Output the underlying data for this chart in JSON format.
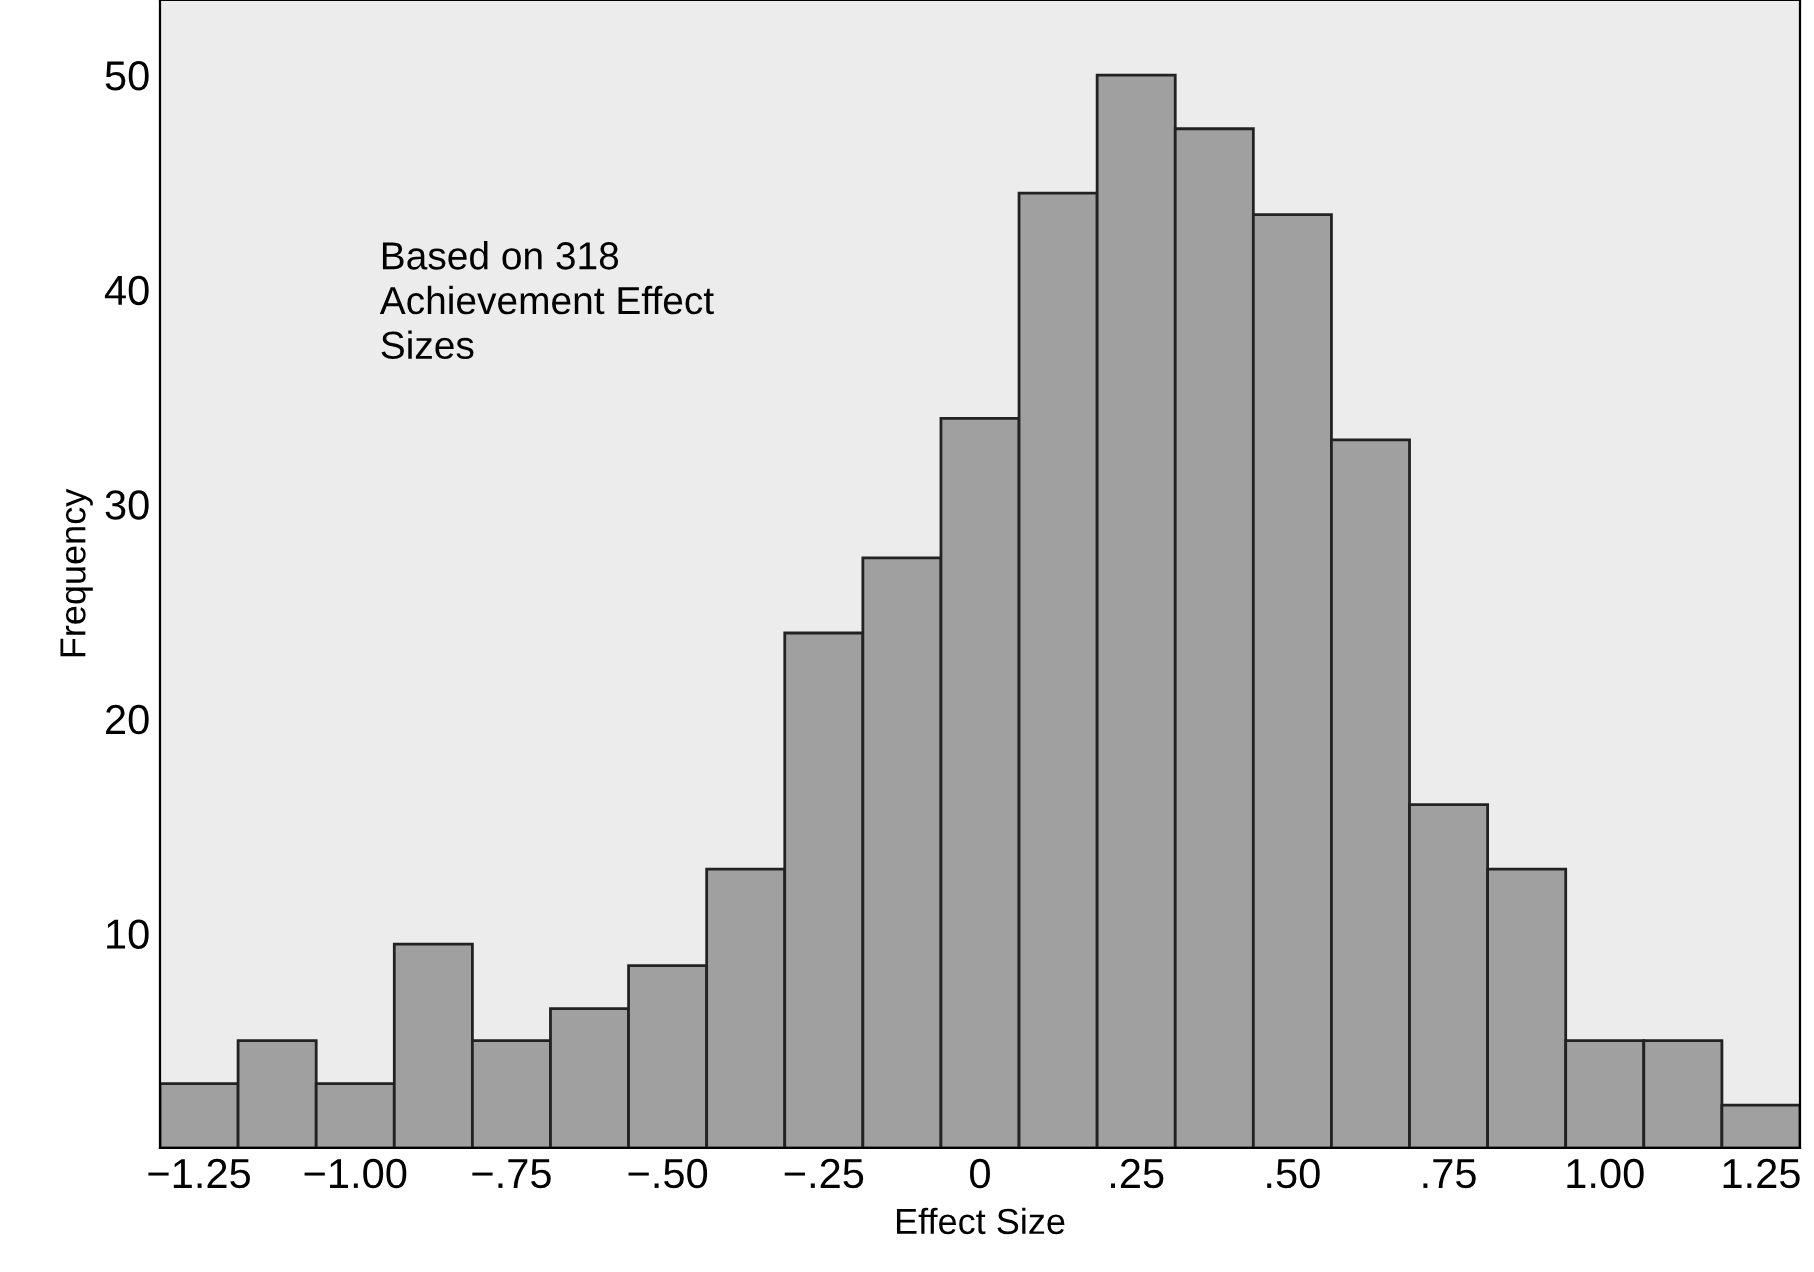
{
  "chart_data": {
    "type": "histogram",
    "xlabel": "Effect Size",
    "ylabel": "Frequency",
    "annotations": [
      "Based on 318\nAchievement Effect\nSizes"
    ],
    "bins": [
      -1.3125,
      -1.1875,
      -1.0625,
      -0.9375,
      -0.8125,
      -0.6875,
      -0.5625,
      -0.4375,
      -0.3125,
      -0.1875,
      -0.0625,
      0.0625,
      0.1875,
      0.3125,
      0.4375,
      0.5625,
      0.6875,
      0.8125,
      0.9375,
      1.0625,
      1.1875,
      1.3125
    ],
    "values": [
      3,
      5,
      3,
      9.5,
      5,
      6.5,
      8.5,
      13,
      24,
      27.5,
      34,
      44.5,
      50,
      47.5,
      43.5,
      33,
      16,
      13,
      5,
      5,
      2
    ],
    "color": "#a0a0a0",
    "xlim": [
      -1.3125,
      1.3125
    ],
    "xticks": [
      {
        "value": -1.25,
        "label": "−1.25"
      },
      {
        "value": -1.0,
        "label": "−1.00"
      },
      {
        "value": -0.75,
        "label": "−.75"
      },
      {
        "value": -0.5,
        "label": "−.50"
      },
      {
        "value": -0.25,
        "label": "−.25"
      },
      0,
      {
        "value": 0.25,
        "label": ".25"
      },
      {
        "value": 0.5,
        "label": ".50"
      },
      {
        "value": 0.75,
        "label": ".75"
      },
      {
        "value": 1.0,
        "label": "1.00"
      },
      {
        "value": 1.25,
        "label": "1.25"
      }
    ],
    "ylim": [
      0,
      53.5
    ],
    "yticks": [
      10,
      20,
      30,
      40,
      50
    ],
    "grid": false,
    "legend": false
  }
}
